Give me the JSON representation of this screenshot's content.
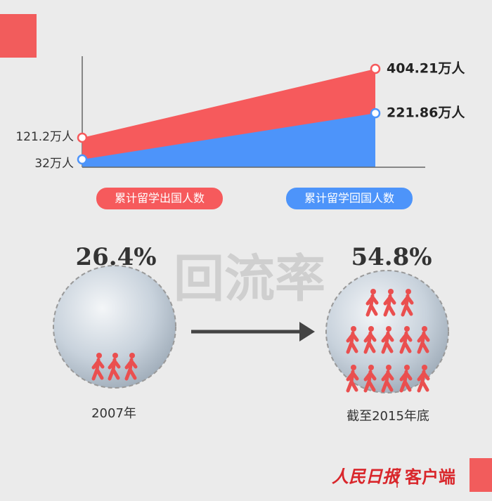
{
  "chart_data": {
    "type": "area",
    "categories": [
      null,
      null
    ],
    "series": [
      {
        "name": "累计留学出国人数",
        "color": "#f65a5c",
        "values": [
          121.2,
          404.21
        ],
        "value_labels": [
          "121.2万人",
          "404.21万人"
        ]
      },
      {
        "name": "累计留学回国人数",
        "color": "#4d94fa",
        "values": [
          32,
          221.86
        ],
        "value_labels": [
          "32万人",
          "221.86万人"
        ]
      }
    ]
  },
  "rate": {
    "title": "回流率",
    "items": [
      {
        "percent": "26.4%",
        "caption": "2007年"
      },
      {
        "percent": "54.8%",
        "caption": "截至2015年底"
      }
    ]
  },
  "footer": {
    "brand": "人民日报",
    "channel": "客户端"
  }
}
